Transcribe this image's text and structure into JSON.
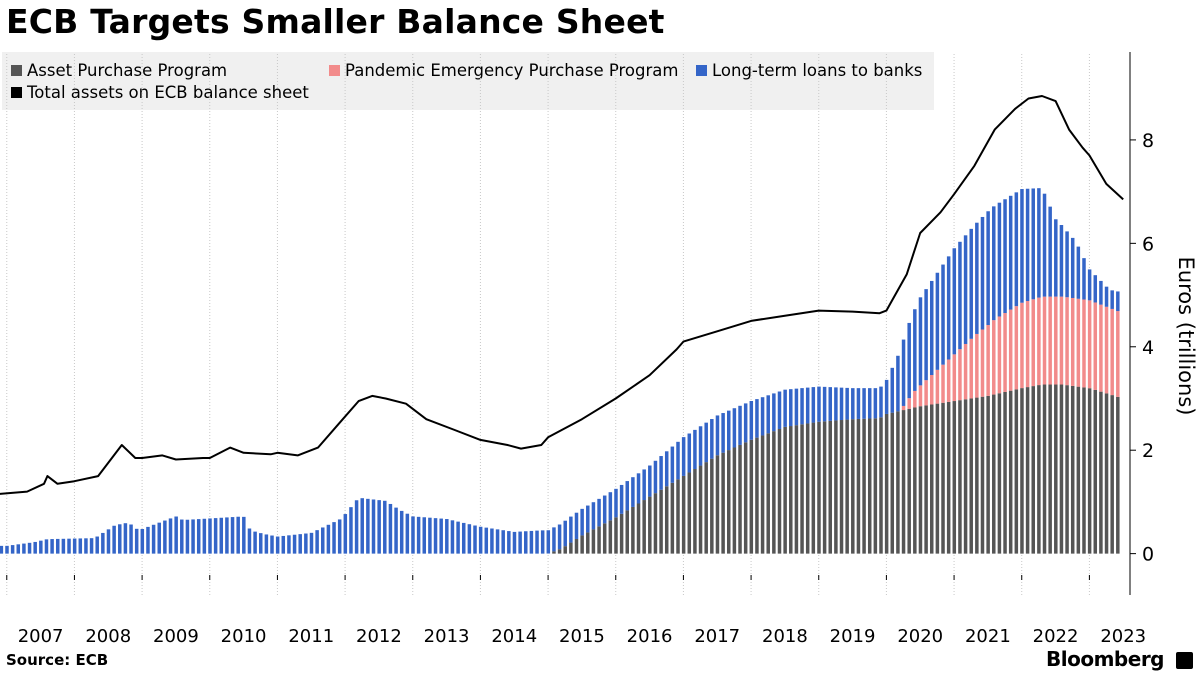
{
  "chart_data": {
    "type": "bar",
    "title": "ECB Targets Smaller Balance Sheet",
    "ylabel": "Euros (trillions)",
    "xlabel": "",
    "ylim": [
      -0.8,
      9.7
    ],
    "yticks": [
      0,
      2,
      4,
      6,
      8
    ],
    "xlim": [
      2006.9,
      2023.6
    ],
    "xtick_labels": [
      "2007",
      "2008",
      "2009",
      "2010",
      "2011",
      "2012",
      "2013",
      "2014",
      "2015",
      "2016",
      "2017",
      "2018",
      "2019",
      "2020",
      "2021",
      "2022",
      "2023"
    ],
    "grid": "vertical dotted",
    "legend_position": "top-left",
    "source": "Source: ECB",
    "brand": "Bloomberg",
    "legend": {
      "app": "Asset Purchase Program",
      "pepp": "Pandemic Emergency Purchase Program",
      "ltro": "Long-term loans to banks",
      "total": "Total assets on ECB balance sheet"
    },
    "colors": {
      "app": "#555555",
      "pepp": "#f28b8b",
      "ltro": "#3465c8",
      "total": "#000000"
    },
    "series": [
      {
        "name": "Asset Purchase Program",
        "kind": "stacked-bar",
        "points": [
          [
            2007.0,
            0
          ],
          [
            2015.0,
            0
          ],
          [
            2015.2,
            0.1
          ],
          [
            2015.5,
            0.35
          ],
          [
            2016.0,
            0.7
          ],
          [
            2016.5,
            1.1
          ],
          [
            2017.0,
            1.5
          ],
          [
            2017.5,
            1.9
          ],
          [
            2018.0,
            2.2
          ],
          [
            2018.5,
            2.45
          ],
          [
            2019.0,
            2.55
          ],
          [
            2019.5,
            2.6
          ],
          [
            2019.9,
            2.62
          ],
          [
            2020.0,
            2.7
          ],
          [
            2020.5,
            2.85
          ],
          [
            2021.0,
            2.95
          ],
          [
            2021.5,
            3.05
          ],
          [
            2022.0,
            3.2
          ],
          [
            2022.3,
            3.27
          ],
          [
            2022.6,
            3.27
          ],
          [
            2023.0,
            3.2
          ],
          [
            2023.3,
            3.08
          ],
          [
            2023.5,
            3.0
          ]
        ]
      },
      {
        "name": "Pandemic Emergency Purchase Program",
        "kind": "stacked-bar",
        "points": [
          [
            2007.0,
            0
          ],
          [
            2020.2,
            0
          ],
          [
            2020.4,
            0.3
          ],
          [
            2020.7,
            0.6
          ],
          [
            2021.0,
            0.9
          ],
          [
            2021.3,
            1.2
          ],
          [
            2021.6,
            1.45
          ],
          [
            2022.0,
            1.65
          ],
          [
            2022.3,
            1.7
          ],
          [
            2023.0,
            1.7
          ],
          [
            2023.5,
            1.65
          ]
        ]
      },
      {
        "name": "Long-term loans to banks",
        "kind": "stacked-bar",
        "points": [
          [
            2007.0,
            0.15
          ],
          [
            2007.4,
            0.22
          ],
          [
            2007.6,
            0.28
          ],
          [
            2008.3,
            0.3
          ],
          [
            2008.6,
            0.55
          ],
          [
            2008.8,
            0.6
          ],
          [
            2008.95,
            0.45
          ],
          [
            2009.5,
            0.72
          ],
          [
            2009.6,
            0.65
          ],
          [
            2010.0,
            0.68
          ],
          [
            2010.5,
            0.72
          ],
          [
            2010.6,
            0.45
          ],
          [
            2010.8,
            0.38
          ],
          [
            2011.0,
            0.33
          ],
          [
            2011.5,
            0.4
          ],
          [
            2011.95,
            0.68
          ],
          [
            2012.2,
            1.08
          ],
          [
            2012.6,
            1.02
          ],
          [
            2012.8,
            0.85
          ],
          [
            2013.0,
            0.72
          ],
          [
            2013.5,
            0.67
          ],
          [
            2014.0,
            0.52
          ],
          [
            2014.5,
            0.42
          ],
          [
            2014.9,
            0.45
          ],
          [
            2015.0,
            0.45
          ],
          [
            2015.3,
            0.5
          ],
          [
            2015.6,
            0.52
          ],
          [
            2016.0,
            0.55
          ],
          [
            2016.5,
            0.6
          ],
          [
            2017.0,
            0.75
          ],
          [
            2017.5,
            0.77
          ],
          [
            2018.0,
            0.75
          ],
          [
            2018.5,
            0.72
          ],
          [
            2019.0,
            0.68
          ],
          [
            2019.5,
            0.6
          ],
          [
            2019.9,
            0.58
          ],
          [
            2020.0,
            0.65
          ],
          [
            2020.3,
            1.4
          ],
          [
            2020.5,
            1.7
          ],
          [
            2021.0,
            2.05
          ],
          [
            2021.5,
            2.2
          ],
          [
            2022.0,
            2.2
          ],
          [
            2022.3,
            2.1
          ],
          [
            2022.5,
            1.5
          ],
          [
            2022.8,
            1.1
          ],
          [
            2023.0,
            0.6
          ],
          [
            2023.3,
            0.35
          ],
          [
            2023.5,
            0.4
          ]
        ]
      },
      {
        "name": "Total assets on ECB balance sheet",
        "kind": "line",
        "points": [
          [
            2006.85,
            1.15
          ],
          [
            2007.3,
            1.2
          ],
          [
            2007.55,
            1.35
          ],
          [
            2007.6,
            1.5
          ],
          [
            2007.75,
            1.35
          ],
          [
            2008.0,
            1.4
          ],
          [
            2008.35,
            1.5
          ],
          [
            2008.7,
            2.1
          ],
          [
            2008.9,
            1.85
          ],
          [
            2009.0,
            1.85
          ],
          [
            2009.3,
            1.9
          ],
          [
            2009.5,
            1.82
          ],
          [
            2009.9,
            1.85
          ],
          [
            2010.0,
            1.85
          ],
          [
            2010.3,
            2.05
          ],
          [
            2010.5,
            1.95
          ],
          [
            2010.9,
            1.92
          ],
          [
            2011.0,
            1.95
          ],
          [
            2011.3,
            1.9
          ],
          [
            2011.6,
            2.05
          ],
          [
            2011.9,
            2.5
          ],
          [
            2012.2,
            2.95
          ],
          [
            2012.4,
            3.05
          ],
          [
            2012.6,
            3.0
          ],
          [
            2012.9,
            2.9
          ],
          [
            2013.2,
            2.6
          ],
          [
            2013.6,
            2.4
          ],
          [
            2014.0,
            2.2
          ],
          [
            2014.4,
            2.1
          ],
          [
            2014.6,
            2.03
          ],
          [
            2014.9,
            2.1
          ],
          [
            2015.0,
            2.25
          ],
          [
            2015.5,
            2.6
          ],
          [
            2016.0,
            3.0
          ],
          [
            2016.5,
            3.45
          ],
          [
            2016.9,
            3.95
          ],
          [
            2017.0,
            4.1
          ],
          [
            2017.5,
            4.3
          ],
          [
            2018.0,
            4.5
          ],
          [
            2018.5,
            4.6
          ],
          [
            2019.0,
            4.7
          ],
          [
            2019.5,
            4.68
          ],
          [
            2019.9,
            4.65
          ],
          [
            2020.0,
            4.7
          ],
          [
            2020.3,
            5.4
          ],
          [
            2020.5,
            6.2
          ],
          [
            2020.8,
            6.6
          ],
          [
            2021.0,
            6.95
          ],
          [
            2021.3,
            7.5
          ],
          [
            2021.6,
            8.2
          ],
          [
            2021.9,
            8.6
          ],
          [
            2022.1,
            8.8
          ],
          [
            2022.3,
            8.85
          ],
          [
            2022.5,
            8.75
          ],
          [
            2022.7,
            8.2
          ],
          [
            2022.9,
            7.85
          ],
          [
            2023.0,
            7.7
          ],
          [
            2023.25,
            7.15
          ],
          [
            2023.5,
            6.85
          ]
        ]
      }
    ]
  }
}
